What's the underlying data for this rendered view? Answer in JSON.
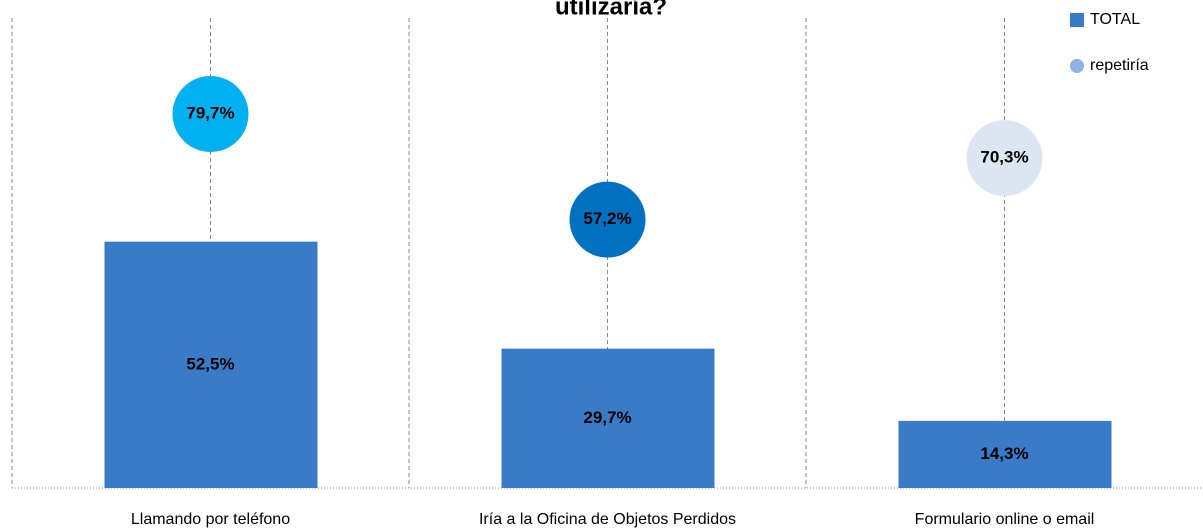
{
  "chart_data": {
    "type": "bar",
    "title": "utilizaría?",
    "categories": [
      "Llamando por teléfono",
      "Iría a la Oficina de Objetos Perdidos",
      "Formulario online o email"
    ],
    "series": [
      {
        "name": "TOTAL",
        "color": "#3a7bc8",
        "values": [
          52.5,
          29.7,
          14.3
        ],
        "value_labels": [
          "52,5%",
          "29,7%",
          "14,3%"
        ]
      },
      {
        "name": "repetiría",
        "marker": "circle",
        "color": "#8db4e2",
        "point_colors": [
          "#00b0f0",
          "#0070c0",
          "#dce6f2"
        ],
        "values": [
          79.7,
          57.2,
          70.3
        ],
        "value_labels": [
          "79,7%",
          "57,2%",
          "70,3%"
        ]
      }
    ],
    "ylim": [
      0,
      104
    ],
    "legend": "top-right"
  }
}
